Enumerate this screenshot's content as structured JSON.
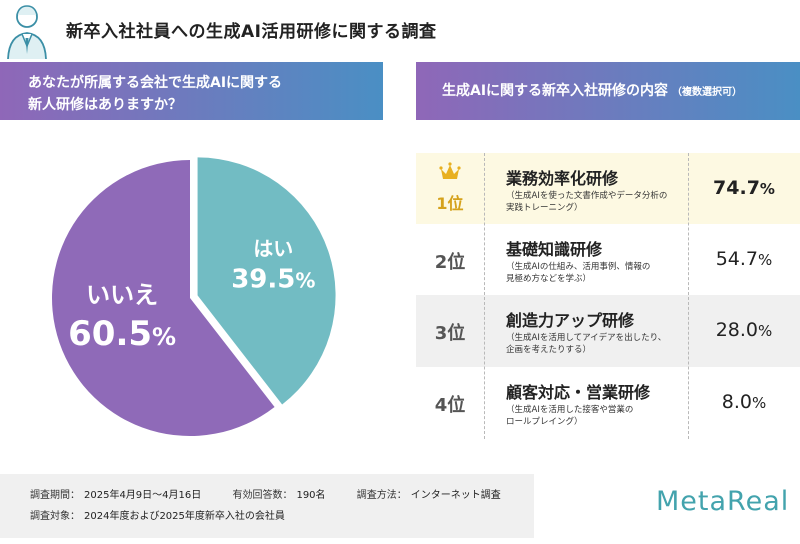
{
  "title": "新卒入社社員への生成AI活用研修に関する調査",
  "question_left": {
    "line1": "あなたが所属する会社で生成AIに関する",
    "line2": "新人研修はありますか？"
  },
  "question_right": {
    "main": "生成AIに関する新卒入社研修の内容",
    "note": "（複数選択可）"
  },
  "chart_data": [
    {
      "type": "pie",
      "slices": [
        {
          "label": "はい",
          "value": 39.5,
          "value_text": "39.5",
          "color": "#72bcc3"
        },
        {
          "label": "いいえ",
          "value": 60.5,
          "value_text": "60.5",
          "color": "#8f6ab8"
        }
      ],
      "unit": "%",
      "exploded": "はい"
    },
    {
      "type": "table",
      "rows": [
        {
          "rank": "1位",
          "title": "業務効率化研修",
          "desc1": "（生成AIを使った文書作成やデータ分析の",
          "desc2": "実践トレーニング）",
          "value": 74.7,
          "value_text": "74.7"
        },
        {
          "rank": "2位",
          "title": "基礎知識研修",
          "desc1": "（生成AIの仕組み、活用事例、情報の",
          "desc2": "見極め方などを学ぶ）",
          "value": 54.7,
          "value_text": "54.7"
        },
        {
          "rank": "3位",
          "title": "創造力アップ研修",
          "desc1": "（生成AIを活用してアイデアを出したり、",
          "desc2": "企画を考えたりする）",
          "value": 28.0,
          "value_text": "28.0"
        },
        {
          "rank": "4位",
          "title": "顧客対応・営業研修",
          "desc1": "（生成AIを活用した接客や営業の",
          "desc2": "ロールプレイング）",
          "value": 8.0,
          "value_text": "8.0"
        }
      ],
      "unit": "%"
    }
  ],
  "footer": {
    "period_label": "調査期間：",
    "period_value": "2025年4月9日〜4月16日",
    "responses_label": "有効回答数：",
    "responses_value": "190名",
    "method_label": "調査方法：",
    "method_value": "インターネット調査",
    "target_label": "調査対象：",
    "target_value": "2024年度および2025年度新卒入社の会社員"
  },
  "logo": "MetaReal",
  "colors": {
    "yes": "#72bcc3",
    "no": "#8f6ab8",
    "banner_start": "#8f67b8",
    "banner_end": "#4a8fc4",
    "gold": "#d5a21c",
    "logo": "#43a3ad"
  }
}
